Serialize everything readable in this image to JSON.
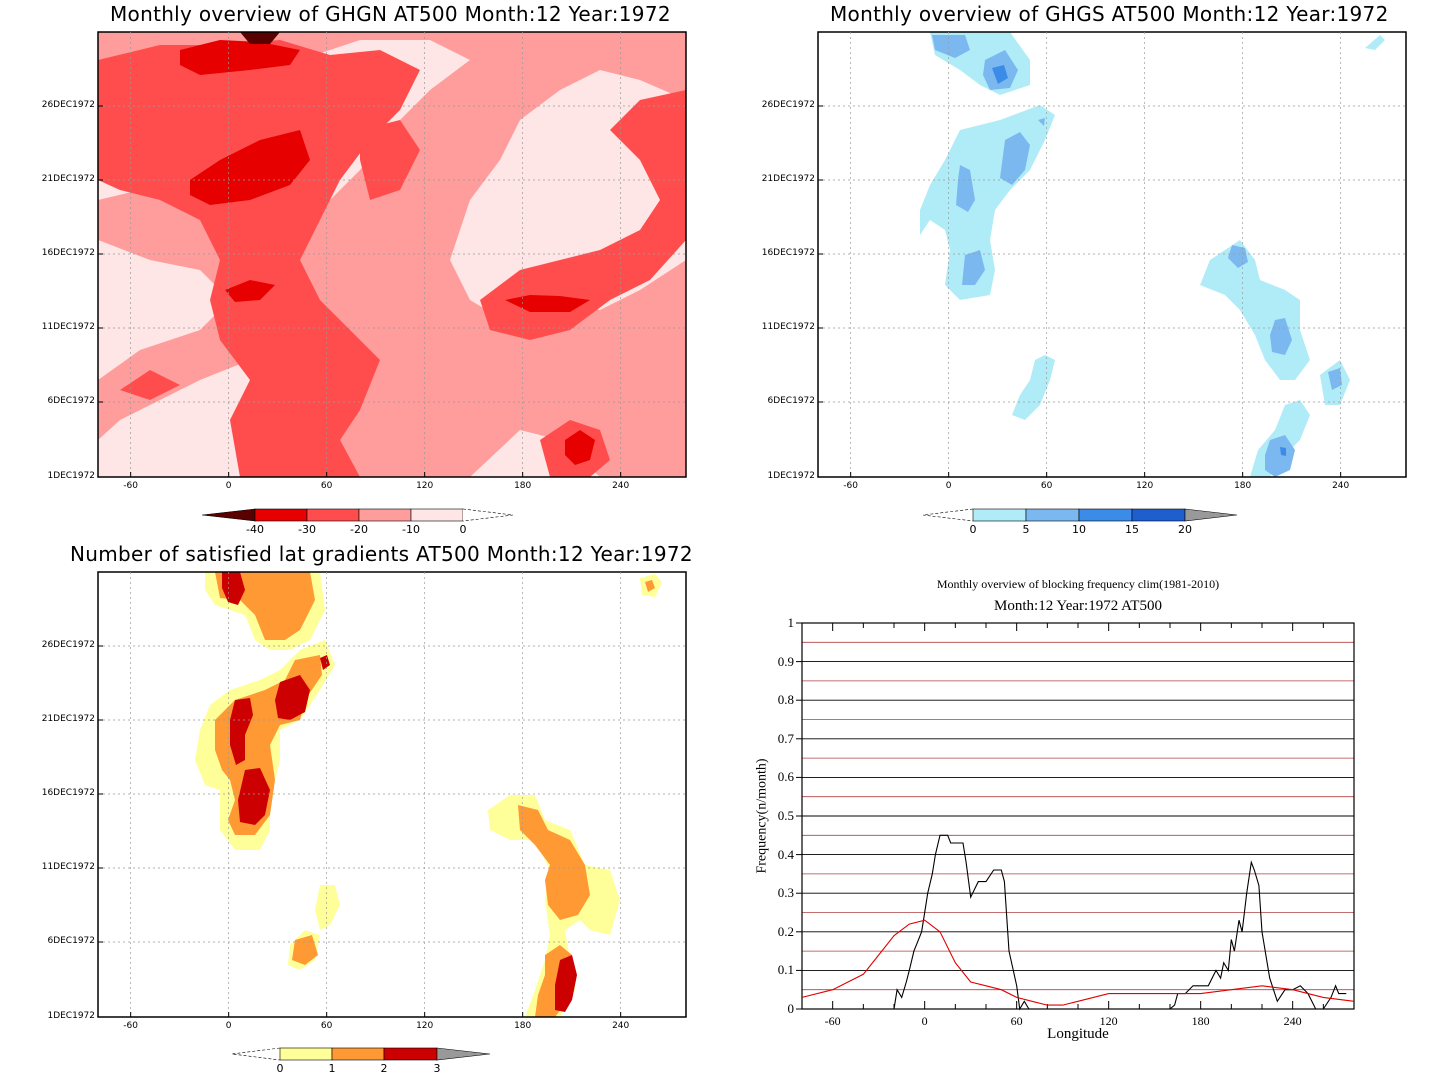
{
  "colors": {
    "red": [
      "#5a0000",
      "#e60000",
      "#ff4d4d",
      "#ff9c9c",
      "#ffe6e6"
    ],
    "blue": [
      "#b0ecf7",
      "#7bb8f0",
      "#3a8ce8",
      "#1e5fd0"
    ],
    "yellow_orange_red": [
      "#ffff99",
      "#ff9933",
      "#cc0000"
    ],
    "line_black": "#000000",
    "line_red": "#e00000",
    "grey_tip": "#999999"
  },
  "panels": [
    {
      "id": "ghgn",
      "title": "Monthly overview of GHGN AT500 Month:12 Year:1972",
      "y_ticks": [
        "26DEC1972",
        "21DEC1972",
        "16DEC1972",
        "11DEC1972",
        "6DEC1972",
        "1DEC1972"
      ],
      "x_ticks": [
        "-60",
        "0",
        "60",
        "120",
        "180",
        "240"
      ],
      "colorbar": [
        "-40",
        "-30",
        "-20",
        "-10",
        "0"
      ]
    },
    {
      "id": "ghgs",
      "title": "Monthly overview of GHGS AT500 Month:12 Year:1972",
      "y_ticks": [
        "26DEC1972",
        "21DEC1972",
        "16DEC1972",
        "11DEC1972",
        "6DEC1972",
        "1DEC1972"
      ],
      "x_ticks": [
        "-60",
        "0",
        "60",
        "120",
        "180",
        "240"
      ],
      "colorbar": [
        "0",
        "5",
        "10",
        "15",
        "20"
      ]
    },
    {
      "id": "latgrad",
      "title": "Number of satisfied lat gradients AT500 Month:12 Year:1972",
      "y_ticks": [
        "26DEC1972",
        "21DEC1972",
        "16DEC1972",
        "11DEC1972",
        "6DEC1972",
        "1DEC1972"
      ],
      "x_ticks": [
        "-60",
        "0",
        "60",
        "120",
        "180",
        "240"
      ],
      "colorbar": [
        "0",
        "1",
        "2",
        "3"
      ]
    }
  ],
  "chart_data": [
    {
      "type": "heatmap",
      "title": "Monthly overview of GHGN AT500 Month:12 Year:1972",
      "x_range": [
        -80,
        280
      ],
      "y_range": [
        "1DEC1972",
        "31DEC1972"
      ],
      "levels": [
        -40,
        -30,
        -20,
        -10,
        0
      ]
    },
    {
      "type": "heatmap",
      "title": "Monthly overview of GHGS AT500 Month:12 Year:1972",
      "x_range": [
        -80,
        280
      ],
      "y_range": [
        "1DEC1972",
        "31DEC1972"
      ],
      "levels": [
        0,
        5,
        10,
        15,
        20
      ]
    },
    {
      "type": "heatmap",
      "title": "Number of satisfied lat gradients AT500 Month:12 Year:1972",
      "x_range": [
        -80,
        280
      ],
      "y_range": [
        "1DEC1972",
        "31DEC1972"
      ],
      "levels": [
        0,
        1,
        2,
        3
      ]
    },
    {
      "type": "line",
      "title": "Monthly overview of blocking frequency clim(1981-2010)",
      "subtitle": "Month:12 Year:1972  AT500",
      "xlabel": "Longitude",
      "ylabel": "Frequency(n/month)",
      "xlim": [
        -80,
        280
      ],
      "ylim": [
        0,
        1
      ],
      "x_ticks": [
        "-60",
        "0",
        "60",
        "120",
        "180",
        "240"
      ],
      "y_ticks": [
        "0",
        "0.1",
        "0.2",
        "0.3",
        "0.4",
        "0.5",
        "0.6",
        "0.7",
        "0.8",
        "0.9",
        "1"
      ],
      "grid": true,
      "series": [
        {
          "color": "#000000",
          "x": [
            -20,
            -18,
            -15,
            -12,
            -10,
            -7,
            -5,
            -2,
            0,
            2,
            5,
            7,
            10,
            15,
            17,
            20,
            25,
            27,
            30,
            35,
            40,
            45,
            50,
            52,
            55,
            60,
            62,
            65,
            68,
            70,
            75,
            80,
            100,
            120,
            140,
            160,
            163,
            165,
            170,
            175,
            180,
            185,
            190,
            193,
            195,
            198,
            200,
            202,
            205,
            207,
            210,
            213,
            215,
            218,
            220,
            225,
            230,
            235,
            240,
            245,
            250,
            255,
            260,
            265,
            268,
            270,
            275
          ],
          "y": [
            0,
            0.05,
            0.03,
            0.07,
            0.1,
            0.15,
            0.17,
            0.2,
            0.25,
            0.3,
            0.35,
            0.4,
            0.45,
            0.45,
            0.43,
            0.43,
            0.43,
            0.38,
            0.29,
            0.33,
            0.33,
            0.36,
            0.36,
            0.33,
            0.15,
            0.06,
            0,
            0.02,
            0,
            0,
            0,
            0,
            0,
            0,
            0,
            0,
            0.01,
            0.04,
            0.04,
            0.06,
            0.06,
            0.06,
            0.1,
            0.08,
            0.12,
            0.1,
            0.18,
            0.15,
            0.23,
            0.2,
            0.3,
            0.38,
            0.36,
            0.32,
            0.2,
            0.08,
            0.02,
            0.05,
            0.05,
            0.06,
            0.04,
            0,
            0,
            0.03,
            0.06,
            0.04,
            0.04
          ]
        },
        {
          "color": "#e00000",
          "x": [
            -80,
            -60,
            -40,
            -30,
            -20,
            -10,
            0,
            10,
            20,
            30,
            40,
            50,
            60,
            70,
            80,
            90,
            100,
            120,
            140,
            160,
            180,
            200,
            220,
            240,
            260,
            280
          ],
          "y": [
            0.03,
            0.05,
            0.09,
            0.14,
            0.19,
            0.22,
            0.23,
            0.2,
            0.12,
            0.07,
            0.06,
            0.05,
            0.03,
            0.02,
            0.01,
            0.01,
            0.02,
            0.04,
            0.04,
            0.04,
            0.04,
            0.05,
            0.06,
            0.05,
            0.03,
            0.02
          ]
        }
      ]
    }
  ],
  "line_panel": {
    "title": "Monthly overview of blocking frequency clim(1981-2010)",
    "subtitle": "Month:12 Year:1972  AT500",
    "xlabel": "Longitude",
    "ylabel": "Frequency(n/month)"
  }
}
